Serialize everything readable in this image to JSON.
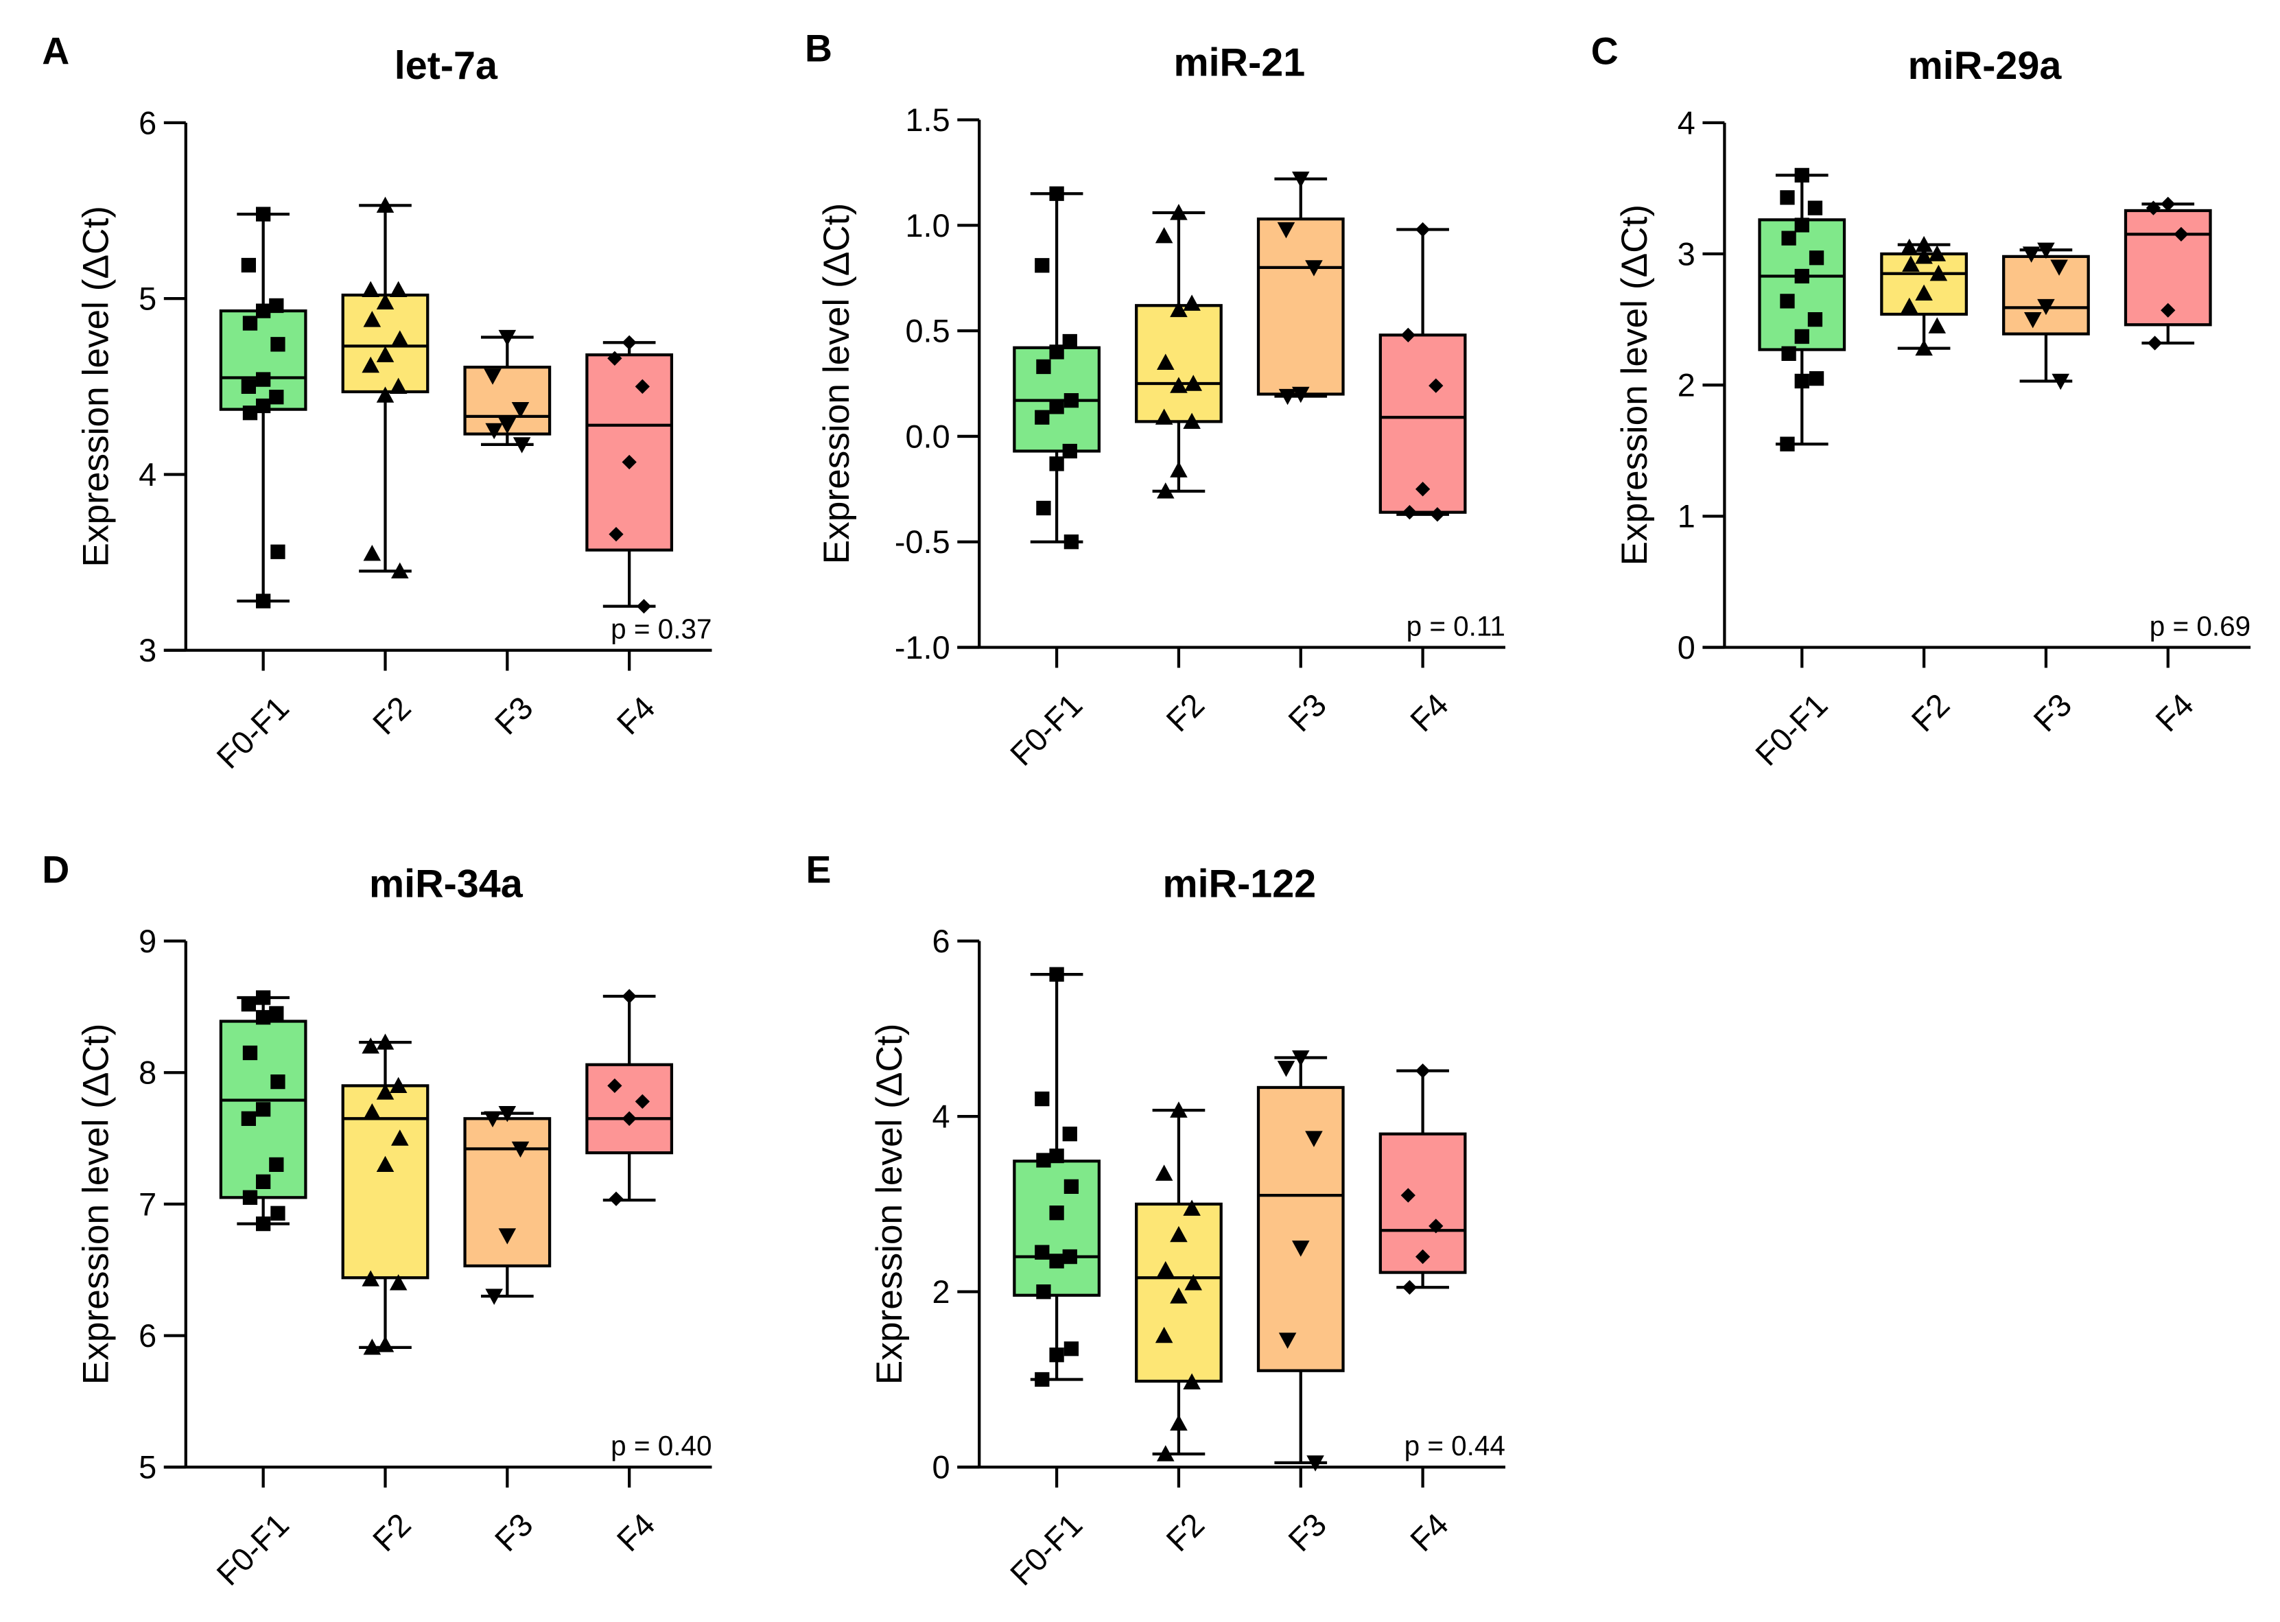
{
  "colors": {
    "F0-F1": "#80e88a",
    "F2": "#fde675",
    "F3": "#fdc487",
    "F4": "#fd9595"
  },
  "markers": {
    "F0-F1": "square",
    "F2": "triangle-up",
    "F3": "triangle-down",
    "F4": "diamond"
  },
  "chart_data": [
    {
      "type": "box",
      "panel": "A",
      "title": "let-7a",
      "ylabel": "Expression level (ΔCt)",
      "ylim": [
        3,
        6
      ],
      "yticks": [
        "3",
        "4",
        "5",
        "6"
      ],
      "categories": [
        "F0-F1",
        "F2",
        "F3",
        "F4"
      ],
      "p_value": "p = 0.37",
      "boxes": [
        {
          "min": 3.28,
          "q1": 4.37,
          "median": 4.55,
          "q3": 4.93,
          "max": 5.48,
          "points": [
            5.48,
            5.19,
            4.96,
            4.93,
            4.86,
            4.74,
            4.54,
            4.5,
            4.44,
            4.39,
            4.35,
            3.56,
            3.28
          ]
        },
        {
          "min": 3.45,
          "q1": 4.47,
          "median": 4.73,
          "q3": 5.02,
          "max": 5.53,
          "points": [
            5.53,
            5.05,
            5.05,
            4.98,
            4.88,
            4.77,
            4.68,
            4.62,
            4.5,
            4.45,
            3.55,
            3.45
          ]
        },
        {
          "min": 4.17,
          "q1": 4.23,
          "median": 4.33,
          "q3": 4.61,
          "max": 4.78,
          "points": [
            4.78,
            4.56,
            4.37,
            4.28,
            4.25,
            4.17
          ]
        },
        {
          "min": 3.25,
          "q1": 3.57,
          "median": 4.28,
          "q3": 4.68,
          "max": 4.75,
          "points": [
            4.75,
            4.66,
            4.5,
            4.07,
            3.66,
            3.25
          ]
        }
      ]
    },
    {
      "type": "box",
      "panel": "B",
      "title": "miR-21",
      "ylabel": "Expression level (ΔCt)",
      "ylim": [
        -1.0,
        1.5
      ],
      "yticks": [
        "-1.0",
        "-0.5",
        "0.0",
        "0.5",
        "1.0",
        "1.5"
      ],
      "categories": [
        "F0-F1",
        "F2",
        "F3",
        "F4"
      ],
      "p_value": "p = 0.11",
      "boxes": [
        {
          "min": -0.5,
          "q1": -0.07,
          "median": 0.17,
          "q3": 0.42,
          "max": 1.15,
          "points": [
            1.15,
            0.81,
            0.45,
            0.4,
            0.33,
            0.17,
            0.14,
            0.09,
            -0.07,
            -0.13,
            -0.34,
            -0.5
          ]
        },
        {
          "min": -0.26,
          "q1": 0.07,
          "median": 0.25,
          "q3": 0.62,
          "max": 1.06,
          "points": [
            1.06,
            0.95,
            0.63,
            0.6,
            0.35,
            0.25,
            0.24,
            0.09,
            0.07,
            -0.16,
            -0.26
          ]
        },
        {
          "min": 0.19,
          "q1": 0.2,
          "median": 0.8,
          "q3": 1.03,
          "max": 1.22,
          "points": [
            1.22,
            0.98,
            0.8,
            0.2,
            0.19
          ]
        },
        {
          "min": -0.37,
          "q1": -0.36,
          "median": 0.09,
          "q3": 0.48,
          "max": 0.98,
          "points": [
            0.98,
            0.48,
            0.24,
            -0.25,
            -0.36,
            -0.37
          ]
        }
      ]
    },
    {
      "type": "box",
      "panel": "C",
      "title": "miR-29a",
      "ylabel": "Expression level (ΔCt)",
      "ylim": [
        0,
        4
      ],
      "yticks": [
        "0",
        "1",
        "2",
        "3",
        "4"
      ],
      "categories": [
        "F0-F1",
        "F2",
        "F3",
        "F4"
      ],
      "p_value": "p = 0.69",
      "boxes": [
        {
          "min": 1.55,
          "q1": 2.27,
          "median": 2.83,
          "q3": 3.26,
          "max": 3.6,
          "points": [
            3.6,
            3.43,
            3.35,
            3.22,
            3.12,
            2.97,
            2.83,
            2.64,
            2.5,
            2.37,
            2.24,
            2.05,
            2.03,
            1.55
          ]
        },
        {
          "min": 2.28,
          "q1": 2.54,
          "median": 2.85,
          "q3": 3.0,
          "max": 3.07,
          "points": [
            3.07,
            3.05,
            3.0,
            2.98,
            2.92,
            2.85,
            2.7,
            2.6,
            2.45,
            2.28
          ]
        },
        {
          "min": 2.03,
          "q1": 2.39,
          "median": 2.59,
          "q3": 2.98,
          "max": 3.03,
          "points": [
            3.03,
            3.0,
            2.9,
            2.6,
            2.5,
            2.03
          ]
        },
        {
          "min": 2.32,
          "q1": 2.46,
          "median": 3.15,
          "q3": 3.33,
          "max": 3.38,
          "points": [
            3.38,
            3.35,
            3.15,
            2.57,
            2.32
          ]
        }
      ]
    },
    {
      "type": "box",
      "panel": "D",
      "title": "miR-34a",
      "ylabel": "Expression level (ΔCt)",
      "ylim": [
        5,
        9
      ],
      "yticks": [
        "5",
        "6",
        "7",
        "8",
        "9"
      ],
      "categories": [
        "F0-F1",
        "F2",
        "F3",
        "F4"
      ],
      "p_value": "p = 0.40",
      "boxes": [
        {
          "min": 6.85,
          "q1": 7.05,
          "median": 7.79,
          "q3": 8.39,
          "max": 8.57,
          "points": [
            8.57,
            8.52,
            8.45,
            8.42,
            8.15,
            7.93,
            7.72,
            7.65,
            7.3,
            7.17,
            7.05,
            6.93,
            6.85
          ]
        },
        {
          "min": 5.91,
          "q1": 6.44,
          "median": 7.65,
          "q3": 7.9,
          "max": 8.23,
          "points": [
            8.23,
            8.2,
            7.9,
            7.85,
            7.7,
            7.5,
            7.3,
            6.43,
            6.4,
            5.93,
            5.91
          ]
        },
        {
          "min": 6.3,
          "q1": 6.53,
          "median": 7.42,
          "q3": 7.65,
          "max": 7.69,
          "points": [
            7.69,
            7.65,
            7.42,
            6.76,
            6.3
          ]
        },
        {
          "min": 7.03,
          "q1": 7.39,
          "median": 7.65,
          "q3": 8.06,
          "max": 8.58,
          "points": [
            8.58,
            7.9,
            7.78,
            7.65,
            7.04
          ]
        }
      ]
    },
    {
      "type": "box",
      "panel": "E",
      "title": "miR-122",
      "ylabel": "Expression level (ΔCt)",
      "ylim": [
        0,
        6
      ],
      "yticks": [
        "0",
        "2",
        "4",
        "6"
      ],
      "categories": [
        "F0-F1",
        "F2",
        "F3",
        "F4"
      ],
      "p_value": "p = 0.44",
      "boxes": [
        {
          "min": 1.0,
          "q1": 1.96,
          "median": 2.4,
          "q3": 3.49,
          "max": 5.62,
          "points": [
            5.62,
            4.2,
            3.8,
            3.55,
            3.5,
            3.2,
            2.9,
            2.45,
            2.4,
            2.35,
            2.0,
            1.35,
            1.28,
            1.0
          ]
        },
        {
          "min": 0.15,
          "q1": 0.98,
          "median": 2.16,
          "q3": 3.0,
          "max": 4.07,
          "points": [
            4.07,
            3.35,
            2.95,
            2.65,
            2.25,
            2.1,
            1.95,
            1.5,
            0.97,
            0.5,
            0.15
          ]
        },
        {
          "min": 0.05,
          "q1": 1.1,
          "median": 3.1,
          "q3": 4.33,
          "max": 4.67,
          "points": [
            4.67,
            4.55,
            3.75,
            2.5,
            1.45,
            0.05
          ]
        },
        {
          "min": 2.05,
          "q1": 2.22,
          "median": 2.7,
          "q3": 3.8,
          "max": 4.52,
          "points": [
            4.52,
            3.1,
            2.75,
            2.4,
            2.05
          ]
        }
      ]
    }
  ]
}
